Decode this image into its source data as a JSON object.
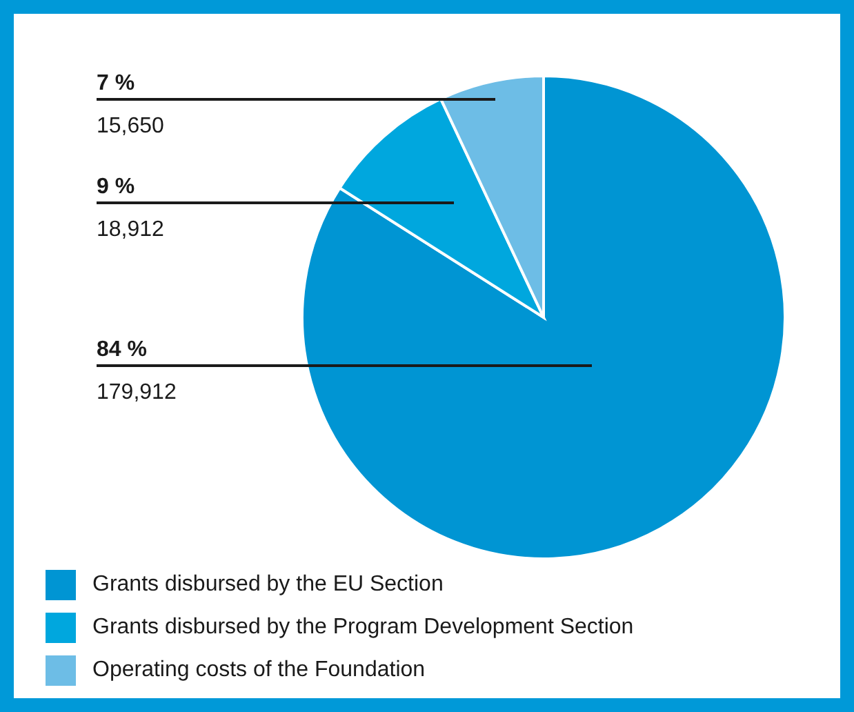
{
  "chart_data": {
    "type": "pie",
    "categories": [
      "Grants disbursed by the EU Section",
      "Grants disbursed by the Program Development Section",
      "Operating costs of the Foundation"
    ],
    "values": [
      84,
      9,
      7
    ],
    "colors": [
      "#0095d3",
      "#00a7de",
      "#6dbde6"
    ],
    "value_labels": [
      "84 %",
      "9 %",
      "7 %"
    ],
    "annotations": [
      "179,912",
      "18,912",
      "15,650"
    ],
    "legend": "bottom left"
  }
}
